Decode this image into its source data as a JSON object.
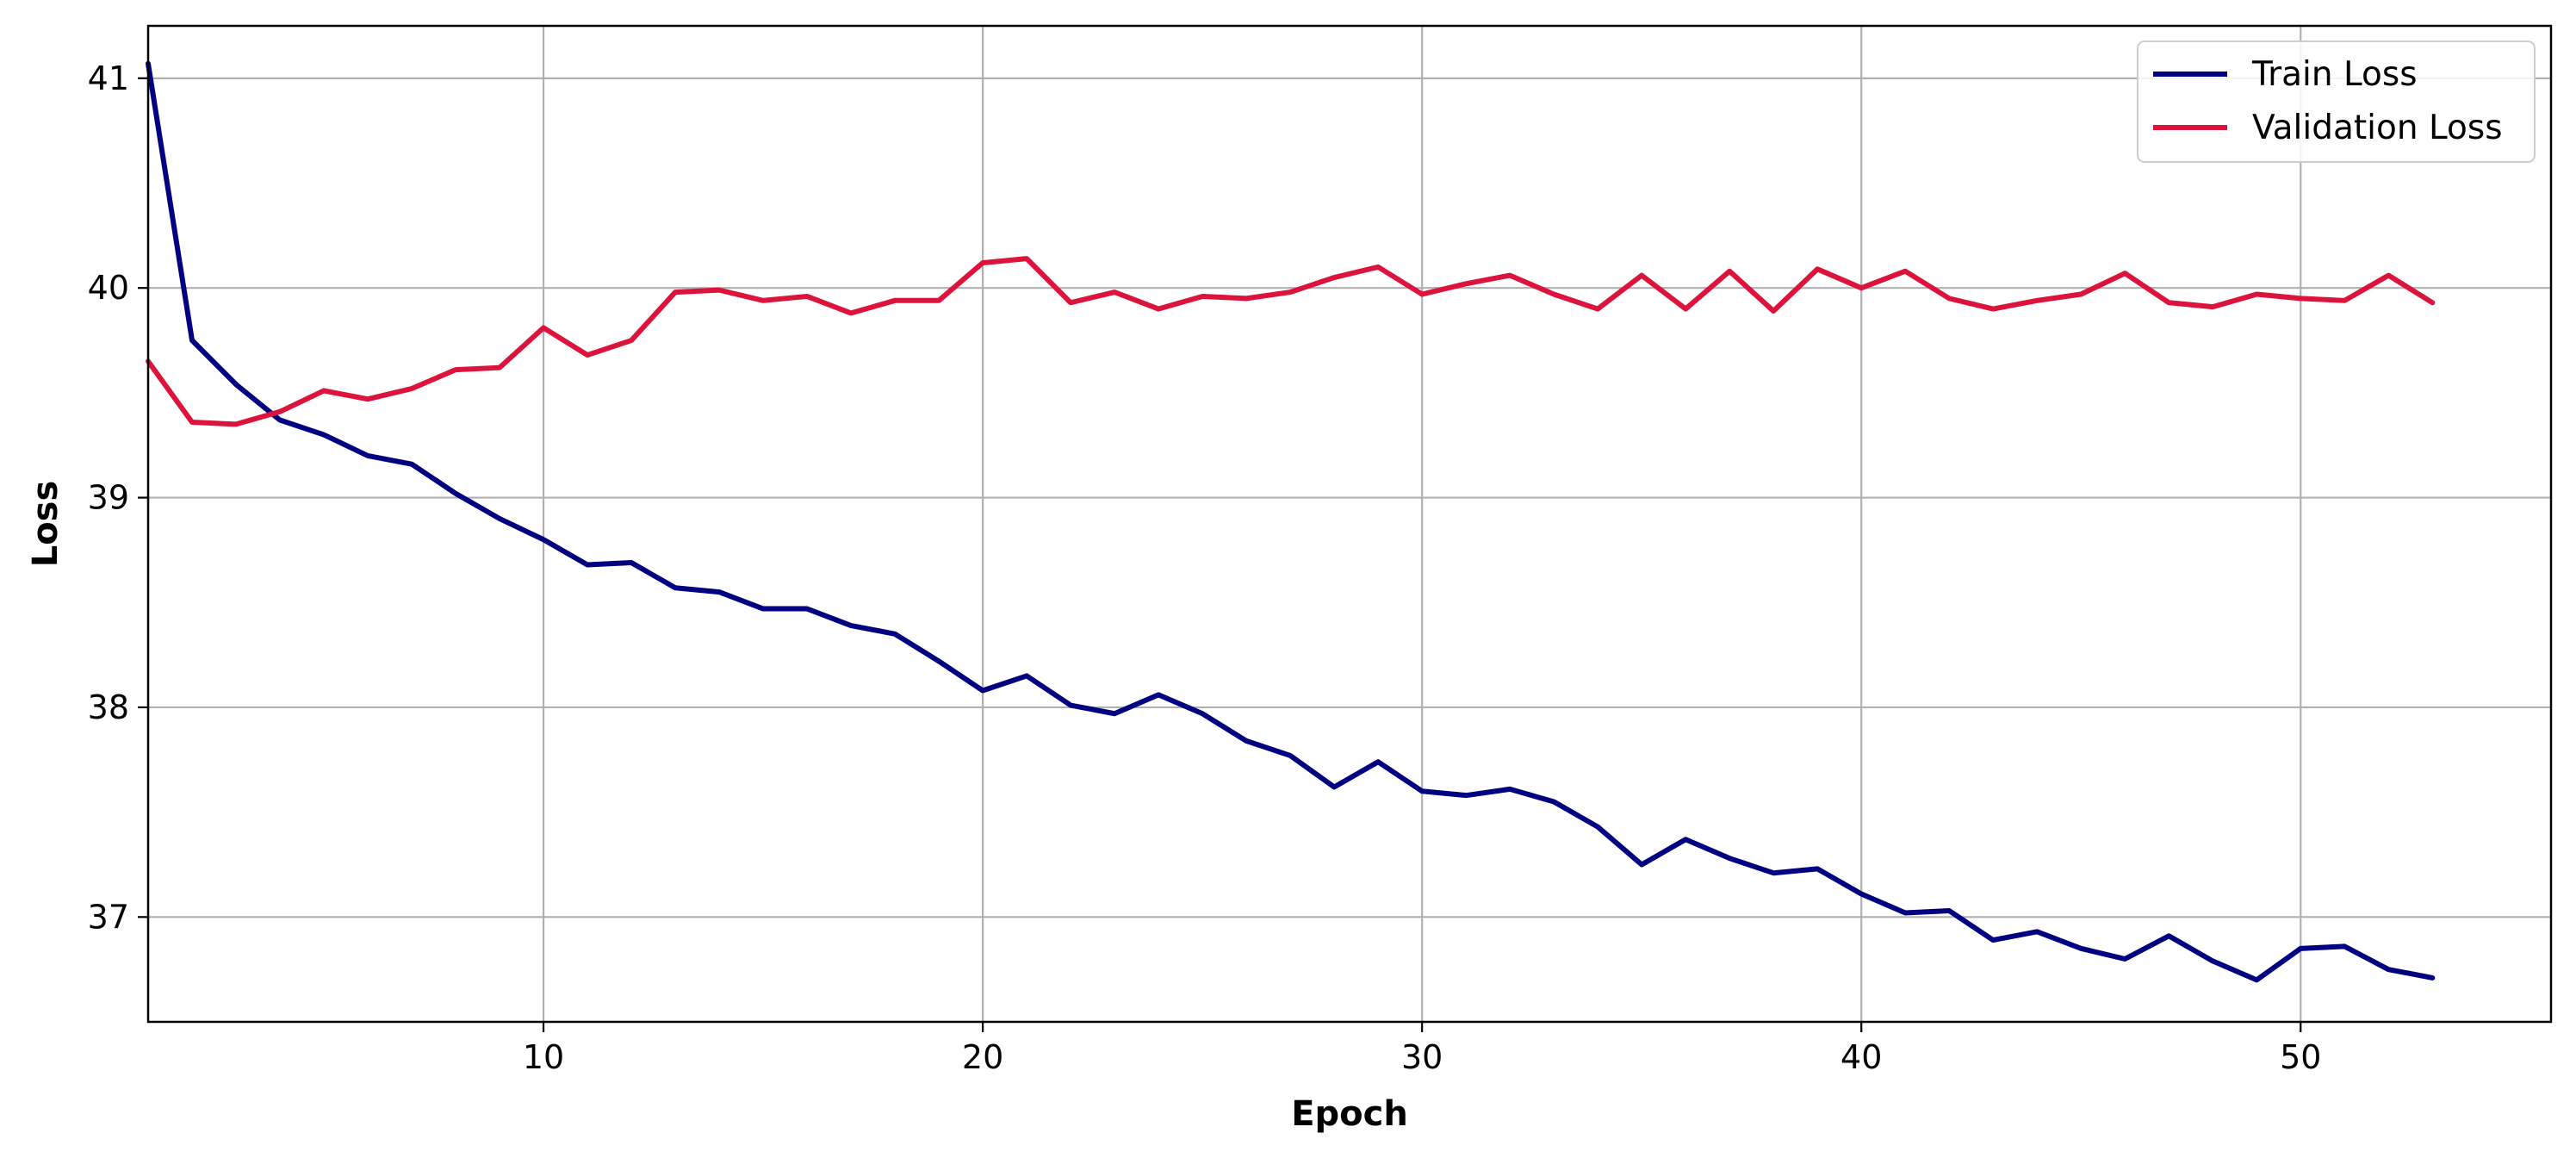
{
  "chart_data": {
    "type": "line",
    "title": "",
    "xlabel": "Epoch",
    "ylabel": "Loss",
    "xlim": [
      1,
      55.7
    ],
    "ylim": [
      36.5,
      41.25
    ],
    "x_ticks": [
      10,
      20,
      30,
      40,
      50
    ],
    "y_ticks": [
      37,
      38,
      39,
      40,
      41
    ],
    "grid": true,
    "legend_position": "top-right",
    "x": [
      1,
      2,
      3,
      4,
      5,
      6,
      7,
      8,
      9,
      10,
      11,
      12,
      13,
      14,
      15,
      16,
      17,
      18,
      19,
      20,
      21,
      22,
      23,
      24,
      25,
      26,
      27,
      28,
      29,
      30,
      31,
      32,
      33,
      34,
      35,
      36,
      37,
      38,
      39,
      40,
      41,
      42,
      43,
      44,
      45,
      46,
      47,
      48,
      49,
      50,
      51,
      52,
      53
    ],
    "series": [
      {
        "name": "Train Loss",
        "color": "#000080",
        "values": [
          41.07,
          39.75,
          39.54,
          39.37,
          39.3,
          39.2,
          39.16,
          39.02,
          38.9,
          38.8,
          38.68,
          38.69,
          38.57,
          38.55,
          38.47,
          38.47,
          38.39,
          38.35,
          38.22,
          38.08,
          38.15,
          38.01,
          37.97,
          38.06,
          37.97,
          37.84,
          37.77,
          37.62,
          37.74,
          37.6,
          37.58,
          37.61,
          37.55,
          37.43,
          37.25,
          37.37,
          37.28,
          37.21,
          37.23,
          37.11,
          37.02,
          37.03,
          36.89,
          36.93,
          36.85,
          36.8,
          36.91,
          36.79,
          36.7,
          36.85,
          36.86,
          36.75,
          36.71
        ]
      },
      {
        "name": "Validation Loss",
        "color": "#DC143C",
        "values": [
          39.65,
          39.36,
          39.35,
          39.41,
          39.51,
          39.47,
          39.52,
          39.61,
          39.62,
          39.81,
          39.68,
          39.75,
          39.98,
          39.99,
          39.94,
          39.96,
          39.88,
          39.94,
          39.94,
          40.12,
          40.14,
          39.93,
          39.98,
          39.9,
          39.96,
          39.95,
          39.98,
          40.05,
          40.1,
          39.97,
          40.02,
          40.06,
          39.97,
          39.9,
          40.06,
          39.9,
          40.08,
          39.89,
          40.09,
          40.0,
          40.08,
          39.95,
          39.9,
          39.94,
          39.97,
          40.07,
          39.93,
          39.91,
          39.97,
          39.95,
          39.94,
          40.06,
          39.93
        ]
      }
    ]
  }
}
